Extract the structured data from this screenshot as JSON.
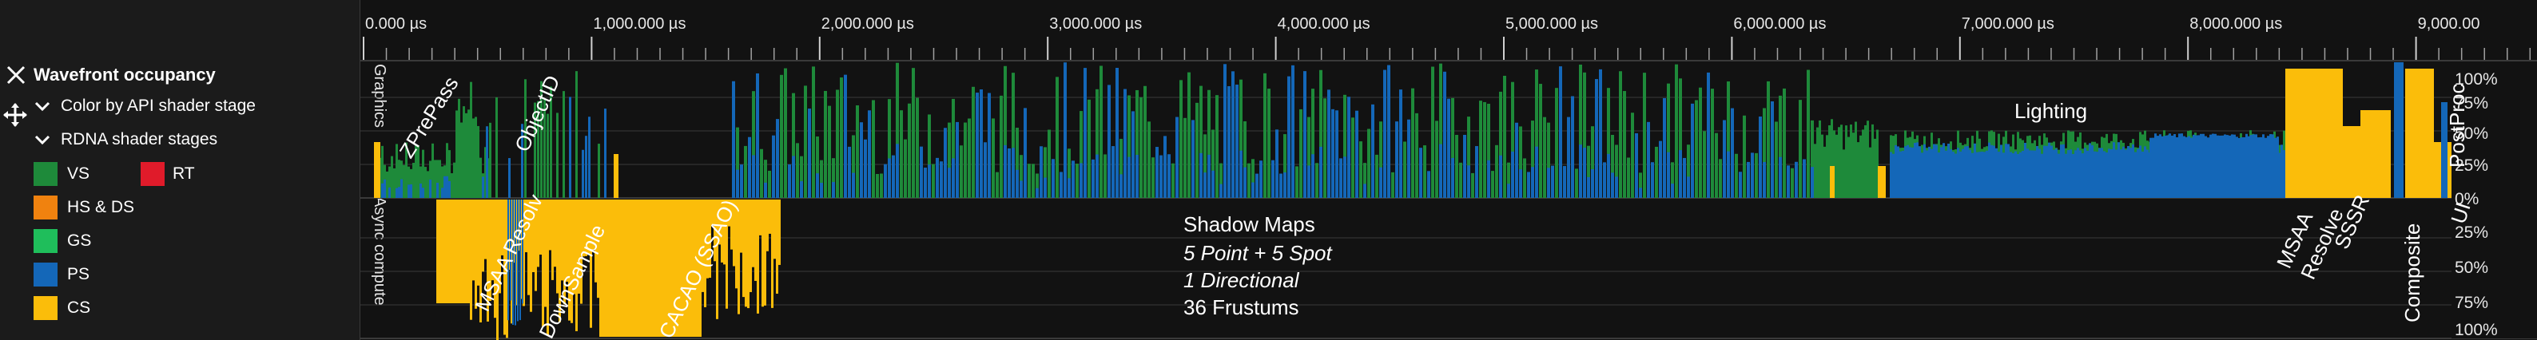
{
  "legend": {
    "title": "Wavefront occupancy",
    "color_by_label": "Color by API shader stage",
    "stages_label": "RDNA shader stages",
    "items": [
      {
        "label": "VS",
        "color": "#1e8a3a"
      },
      {
        "label": "RT",
        "color": "#e01b2a"
      },
      {
        "label": "HS & DS",
        "color": "#f0820f"
      },
      {
        "label": "GS",
        "color": "#1fbe5b"
      },
      {
        "label": "PS",
        "color": "#1467b8"
      },
      {
        "label": "CS",
        "color": "#fbbd0a"
      }
    ],
    "icons": {
      "close": "close-icon",
      "move": "move-icon",
      "chevron": "chevron-down-icon"
    }
  },
  "timeline": {
    "ticks": [
      "0.000 µs",
      "1,000.000 µs",
      "2,000.000 µs",
      "3,000.000 µs",
      "4,000.000 µs",
      "5,000.000 µs",
      "6,000.000 µs",
      "7,000.000 µs",
      "8,000.000 µs",
      "9,000.00"
    ]
  },
  "tracks": {
    "graphics_label": "Graphics",
    "async_label": "Async compute",
    "graphics_scale": [
      "100%",
      "75%",
      "50%",
      "25%",
      "0%"
    ],
    "async_scale": [
      "25%",
      "50%",
      "75%",
      "100%"
    ]
  },
  "annotations": {
    "zprepass": "ZPrePass",
    "objectid": "ObjectID",
    "lighting": "Lighting",
    "postproc": "PostProc",
    "msaa_resolve_async": "MSAA Resolv",
    "downsample": "DownSample",
    "cacao": "CACAO (SSAO)",
    "shadow_maps_lines": [
      "Shadow Maps",
      "5 Point + 5 Spot",
      "1 Directional",
      "36 Frustums"
    ],
    "msaa": "MSAA",
    "resolve": "Resolve",
    "sssr": "SSSR",
    "composite": "Composite",
    "ui": "UI"
  }
}
